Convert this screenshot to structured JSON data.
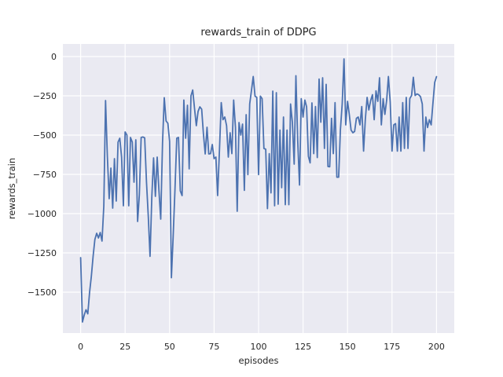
{
  "figure": {
    "background": "#ffffff"
  },
  "chart_data": {
    "type": "line",
    "title": "rewards_train of DDPG",
    "xlabel": "episodes",
    "ylabel": "rewards_train",
    "legend": "none",
    "grid": true,
    "style": "seaborn-darkgrid",
    "axes_bg": "#eaeaf2",
    "grid_color": "#ffffff",
    "line_color": "#4c72b0",
    "text_color": "#262626",
    "fig_bg": "#ffffff",
    "xlim": [
      -10,
      210
    ],
    "ylim": [
      -1760,
      80
    ],
    "xticks": {
      "values": [
        0,
        25,
        50,
        75,
        100,
        125,
        150,
        175,
        200
      ],
      "labels": [
        "0",
        "25",
        "50",
        "75",
        "100",
        "125",
        "150",
        "175",
        "200"
      ]
    },
    "yticks": {
      "values": [
        0,
        -250,
        -500,
        -750,
        -1000,
        -1250,
        -1500
      ],
      "labels": [
        "0",
        "−250",
        "−500",
        "−750",
        "−1000",
        "−1250",
        "−1500"
      ]
    },
    "x_start": 0,
    "x_step": 1,
    "series_name": "rewards_train",
    "values": [
      -1280,
      -1690,
      -1645,
      -1612,
      -1638,
      -1500,
      -1400,
      -1270,
      -1165,
      -1125,
      -1155,
      -1120,
      -1175,
      -950,
      -280,
      -635,
      -905,
      -710,
      -965,
      -650,
      -920,
      -545,
      -520,
      -640,
      -950,
      -480,
      -500,
      -950,
      -515,
      -545,
      -800,
      -530,
      -1050,
      -880,
      -515,
      -512,
      -518,
      -800,
      -1020,
      -1272,
      -890,
      -645,
      -890,
      -640,
      -850,
      -1035,
      -550,
      -262,
      -410,
      -425,
      -540,
      -1408,
      -1150,
      -850,
      -520,
      -515,
      -855,
      -885,
      -277,
      -520,
      -310,
      -715,
      -250,
      -213,
      -330,
      -440,
      -350,
      -320,
      -335,
      -490,
      -620,
      -450,
      -620,
      -618,
      -560,
      -650,
      -640,
      -885,
      -600,
      -293,
      -402,
      -385,
      -440,
      -640,
      -485,
      -618,
      -277,
      -452,
      -985,
      -420,
      -500,
      -430,
      -852,
      -370,
      -752,
      -302,
      -218,
      -127,
      -252,
      -260,
      -752,
      -252,
      -268,
      -585,
      -590,
      -968,
      -618,
      -868,
      -220,
      -950,
      -230,
      -940,
      -468,
      -835,
      -385,
      -943,
      -468,
      -943,
      -302,
      -418,
      -685,
      -122,
      -535,
      -818,
      -268,
      -385,
      -277,
      -320,
      -635,
      -677,
      -295,
      -618,
      -318,
      -643,
      -143,
      -418,
      -135,
      -585,
      -177,
      -700,
      -702,
      -393,
      -618,
      -293,
      -768,
      -768,
      -468,
      -302,
      -15,
      -435,
      -285,
      -368,
      -468,
      -485,
      -477,
      -393,
      -385,
      -435,
      -318,
      -602,
      -402,
      -260,
      -340,
      -280,
      -243,
      -402,
      -218,
      -285,
      -135,
      -435,
      -268,
      -368,
      -277,
      -127,
      -290,
      -602,
      -435,
      -427,
      -602,
      -385,
      -602,
      -293,
      -585,
      -260,
      -585,
      -268,
      -248,
      -132,
      -248,
      -238,
      -243,
      -255,
      -302,
      -602,
      -385,
      -452,
      -402,
      -435,
      -300,
      -165,
      -128
    ]
  }
}
